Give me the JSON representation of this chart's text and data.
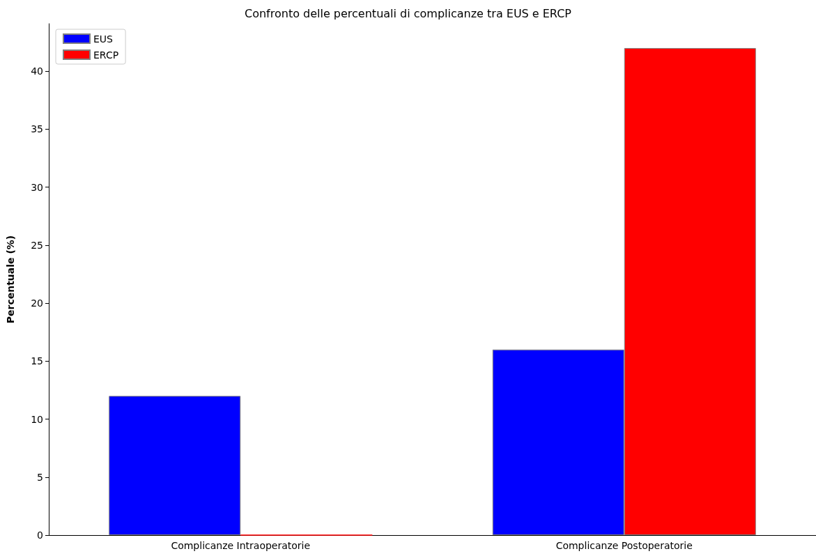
{
  "chart_data": {
    "type": "bar",
    "title": "Confronto delle percentuali di complicanze tra EUS e ERCP",
    "ylabel": "Percentuale (%)",
    "categories": [
      "Complicanze Intraoperatorie",
      "Complicanze Postoperatorie"
    ],
    "series": [
      {
        "name": "EUS",
        "color": "#0000ff",
        "values": [
          12,
          16
        ]
      },
      {
        "name": "ERCP",
        "color": "#ff0000",
        "values": [
          0,
          42
        ]
      }
    ],
    "ylim": [
      0,
      44.1
    ],
    "yticks": [
      0,
      5,
      10,
      15,
      20,
      25,
      30,
      35,
      40
    ],
    "grid": false,
    "legend": "top left"
  }
}
